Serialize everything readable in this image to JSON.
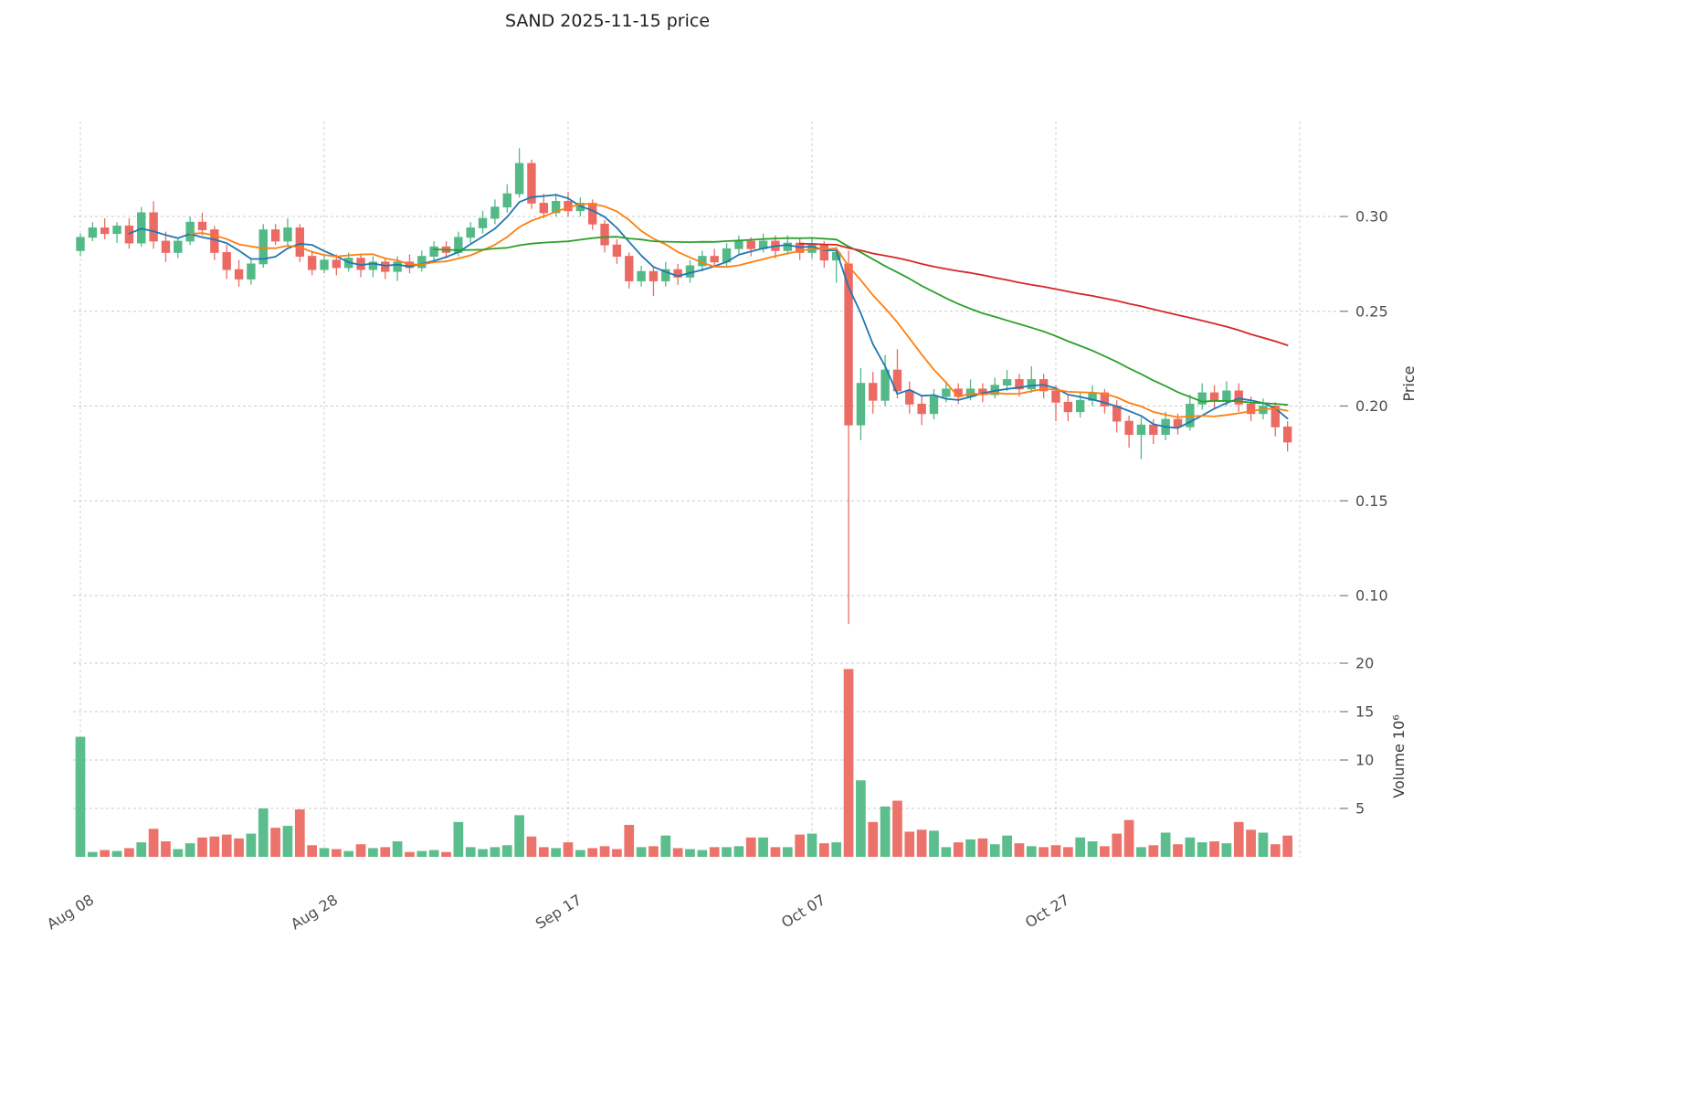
{
  "chart_data": {
    "type": "candlestick",
    "title": "SAND  2025-11-15  price",
    "ylabel": "Price",
    "ylabel2": "Volume  10⁶",
    "xlabel": "",
    "grid": true,
    "ylim": [
      0.082,
      0.352
    ],
    "volume_ylim": [
      0,
      22
    ],
    "price_ticks": [
      0.1,
      0.15,
      0.2,
      0.25,
      0.3
    ],
    "volume_ticks": [
      5,
      10,
      15,
      20
    ],
    "x_ticks": [
      {
        "label": "Aug 08",
        "day": 0
      },
      {
        "label": "Aug 28",
        "day": 20
      },
      {
        "label": "Sep 17",
        "day": 40
      },
      {
        "label": "Oct 07",
        "day": 60
      },
      {
        "label": "Oct 27",
        "day": 80
      }
    ],
    "colors": {
      "up": "#53b987",
      "down": "#eb6b64",
      "grid": "#cbcbcb",
      "ma_short": "#1f77b4",
      "ma_mid": "#ff7f0e",
      "ma_long": "#2ca02c",
      "ma_xlong": "#d62728"
    },
    "moving_averages": [
      {
        "name": "MA5",
        "window": 5,
        "color": "#1f77b4"
      },
      {
        "name": "MA10",
        "window": 10,
        "color": "#ff7f0e"
      },
      {
        "name": "MA30",
        "window": 30,
        "color": "#2ca02c"
      },
      {
        "name": "MA60",
        "window": 60,
        "color": "#d62728"
      }
    ],
    "ohlc": [
      [
        0.282,
        0.291,
        0.279,
        0.289
      ],
      [
        0.289,
        0.297,
        0.287,
        0.294
      ],
      [
        0.294,
        0.299,
        0.288,
        0.291
      ],
      [
        0.291,
        0.297,
        0.286,
        0.295
      ],
      [
        0.295,
        0.299,
        0.283,
        0.286
      ],
      [
        0.286,
        0.305,
        0.284,
        0.302
      ],
      [
        0.302,
        0.308,
        0.283,
        0.287
      ],
      [
        0.287,
        0.292,
        0.276,
        0.281
      ],
      [
        0.281,
        0.289,
        0.278,
        0.287
      ],
      [
        0.287,
        0.3,
        0.285,
        0.297
      ],
      [
        0.297,
        0.302,
        0.29,
        0.293
      ],
      [
        0.293,
        0.295,
        0.277,
        0.281
      ],
      [
        0.281,
        0.285,
        0.267,
        0.272
      ],
      [
        0.272,
        0.277,
        0.263,
        0.267
      ],
      [
        0.267,
        0.278,
        0.264,
        0.275
      ],
      [
        0.275,
        0.296,
        0.273,
        0.293
      ],
      [
        0.293,
        0.296,
        0.285,
        0.287
      ],
      [
        0.287,
        0.299,
        0.285,
        0.294
      ],
      [
        0.294,
        0.296,
        0.276,
        0.279
      ],
      [
        0.279,
        0.282,
        0.269,
        0.272
      ],
      [
        0.272,
        0.28,
        0.27,
        0.277
      ],
      [
        0.277,
        0.28,
        0.269,
        0.273
      ],
      [
        0.273,
        0.281,
        0.271,
        0.278
      ],
      [
        0.278,
        0.28,
        0.268,
        0.272
      ],
      [
        0.272,
        0.279,
        0.268,
        0.276
      ],
      [
        0.276,
        0.278,
        0.267,
        0.271
      ],
      [
        0.271,
        0.279,
        0.266,
        0.276
      ],
      [
        0.276,
        0.28,
        0.27,
        0.273
      ],
      [
        0.273,
        0.282,
        0.271,
        0.279
      ],
      [
        0.279,
        0.287,
        0.276,
        0.284
      ],
      [
        0.284,
        0.287,
        0.278,
        0.281
      ],
      [
        0.281,
        0.292,
        0.279,
        0.289
      ],
      [
        0.289,
        0.297,
        0.286,
        0.294
      ],
      [
        0.294,
        0.303,
        0.291,
        0.299
      ],
      [
        0.299,
        0.309,
        0.296,
        0.305
      ],
      [
        0.305,
        0.317,
        0.302,
        0.312
      ],
      [
        0.312,
        0.336,
        0.31,
        0.328
      ],
      [
        0.328,
        0.33,
        0.304,
        0.307
      ],
      [
        0.307,
        0.312,
        0.299,
        0.302
      ],
      [
        0.302,
        0.312,
        0.3,
        0.308
      ],
      [
        0.308,
        0.313,
        0.3,
        0.303
      ],
      [
        0.303,
        0.31,
        0.3,
        0.307
      ],
      [
        0.307,
        0.309,
        0.293,
        0.296
      ],
      [
        0.296,
        0.298,
        0.281,
        0.285
      ],
      [
        0.285,
        0.288,
        0.275,
        0.279
      ],
      [
        0.279,
        0.281,
        0.262,
        0.266
      ],
      [
        0.266,
        0.274,
        0.263,
        0.271
      ],
      [
        0.271,
        0.274,
        0.258,
        0.266
      ],
      [
        0.266,
        0.276,
        0.263,
        0.272
      ],
      [
        0.272,
        0.275,
        0.264,
        0.268
      ],
      [
        0.268,
        0.277,
        0.265,
        0.274
      ],
      [
        0.274,
        0.282,
        0.271,
        0.279
      ],
      [
        0.279,
        0.283,
        0.273,
        0.276
      ],
      [
        0.276,
        0.286,
        0.274,
        0.283
      ],
      [
        0.283,
        0.29,
        0.28,
        0.287
      ],
      [
        0.287,
        0.289,
        0.279,
        0.283
      ],
      [
        0.283,
        0.291,
        0.281,
        0.287
      ],
      [
        0.287,
        0.29,
        0.278,
        0.282
      ],
      [
        0.282,
        0.29,
        0.28,
        0.286
      ],
      [
        0.286,
        0.288,
        0.277,
        0.281
      ],
      [
        0.281,
        0.289,
        0.278,
        0.285
      ],
      [
        0.285,
        0.287,
        0.273,
        0.277
      ],
      [
        0.277,
        0.284,
        0.265,
        0.281
      ],
      [
        0.275,
        0.282,
        0.085,
        0.19
      ],
      [
        0.19,
        0.22,
        0.182,
        0.212
      ],
      [
        0.212,
        0.218,
        0.196,
        0.203
      ],
      [
        0.203,
        0.227,
        0.2,
        0.219
      ],
      [
        0.219,
        0.23,
        0.204,
        0.208
      ],
      [
        0.208,
        0.213,
        0.196,
        0.201
      ],
      [
        0.201,
        0.206,
        0.19,
        0.196
      ],
      [
        0.196,
        0.209,
        0.193,
        0.205
      ],
      [
        0.205,
        0.213,
        0.202,
        0.209
      ],
      [
        0.209,
        0.212,
        0.201,
        0.205
      ],
      [
        0.205,
        0.214,
        0.203,
        0.209
      ],
      [
        0.209,
        0.212,
        0.202,
        0.206
      ],
      [
        0.206,
        0.215,
        0.204,
        0.211
      ],
      [
        0.211,
        0.219,
        0.208,
        0.214
      ],
      [
        0.214,
        0.217,
        0.205,
        0.209
      ],
      [
        0.209,
        0.221,
        0.207,
        0.214
      ],
      [
        0.214,
        0.217,
        0.204,
        0.208
      ],
      [
        0.208,
        0.211,
        0.192,
        0.202
      ],
      [
        0.202,
        0.206,
        0.192,
        0.197
      ],
      [
        0.197,
        0.207,
        0.194,
        0.203
      ],
      [
        0.203,
        0.211,
        0.2,
        0.207
      ],
      [
        0.207,
        0.209,
        0.196,
        0.2
      ],
      [
        0.2,
        0.203,
        0.186,
        0.192
      ],
      [
        0.192,
        0.195,
        0.178,
        0.185
      ],
      [
        0.185,
        0.194,
        0.172,
        0.19
      ],
      [
        0.19,
        0.193,
        0.18,
        0.185
      ],
      [
        0.185,
        0.197,
        0.182,
        0.193
      ],
      [
        0.193,
        0.196,
        0.185,
        0.189
      ],
      [
        0.189,
        0.206,
        0.187,
        0.201
      ],
      [
        0.201,
        0.212,
        0.198,
        0.207
      ],
      [
        0.207,
        0.211,
        0.199,
        0.203
      ],
      [
        0.203,
        0.213,
        0.2,
        0.208
      ],
      [
        0.208,
        0.212,
        0.197,
        0.201
      ],
      [
        0.201,
        0.205,
        0.192,
        0.196
      ],
      [
        0.196,
        0.204,
        0.193,
        0.2
      ],
      [
        0.2,
        0.202,
        0.184,
        0.189
      ],
      [
        0.189,
        0.192,
        0.176,
        0.181
      ]
    ],
    "volume_millions": [
      12.4,
      0.5,
      0.7,
      0.6,
      0.9,
      1.5,
      2.9,
      1.6,
      0.8,
      1.4,
      2.0,
      2.1,
      2.3,
      1.9,
      2.4,
      5.0,
      3.0,
      3.2,
      4.9,
      1.2,
      0.9,
      0.8,
      0.6,
      1.3,
      0.9,
      1.0,
      1.6,
      0.5,
      0.6,
      0.7,
      0.5,
      3.6,
      1.0,
      0.8,
      1.0,
      1.2,
      4.3,
      2.1,
      1.0,
      0.9,
      1.5,
      0.7,
      0.9,
      1.1,
      0.8,
      3.3,
      1.0,
      1.1,
      2.2,
      0.9,
      0.8,
      0.7,
      1.0,
      1.0,
      1.1,
      2.0,
      2.0,
      1.0,
      1.0,
      2.3,
      2.4,
      1.4,
      1.5,
      19.4,
      7.9,
      3.6,
      5.2,
      5.8,
      2.6,
      2.8,
      2.7,
      1.0,
      1.5,
      1.8,
      1.9,
      1.3,
      2.2,
      1.4,
      1.1,
      1.0,
      1.2,
      1.0,
      2.0,
      1.6,
      1.1,
      2.4,
      3.8,
      1.0,
      1.2,
      2.5,
      1.3,
      2.0,
      1.5,
      1.6,
      1.4,
      3.6,
      2.8,
      2.5,
      1.3,
      2.2
    ]
  }
}
